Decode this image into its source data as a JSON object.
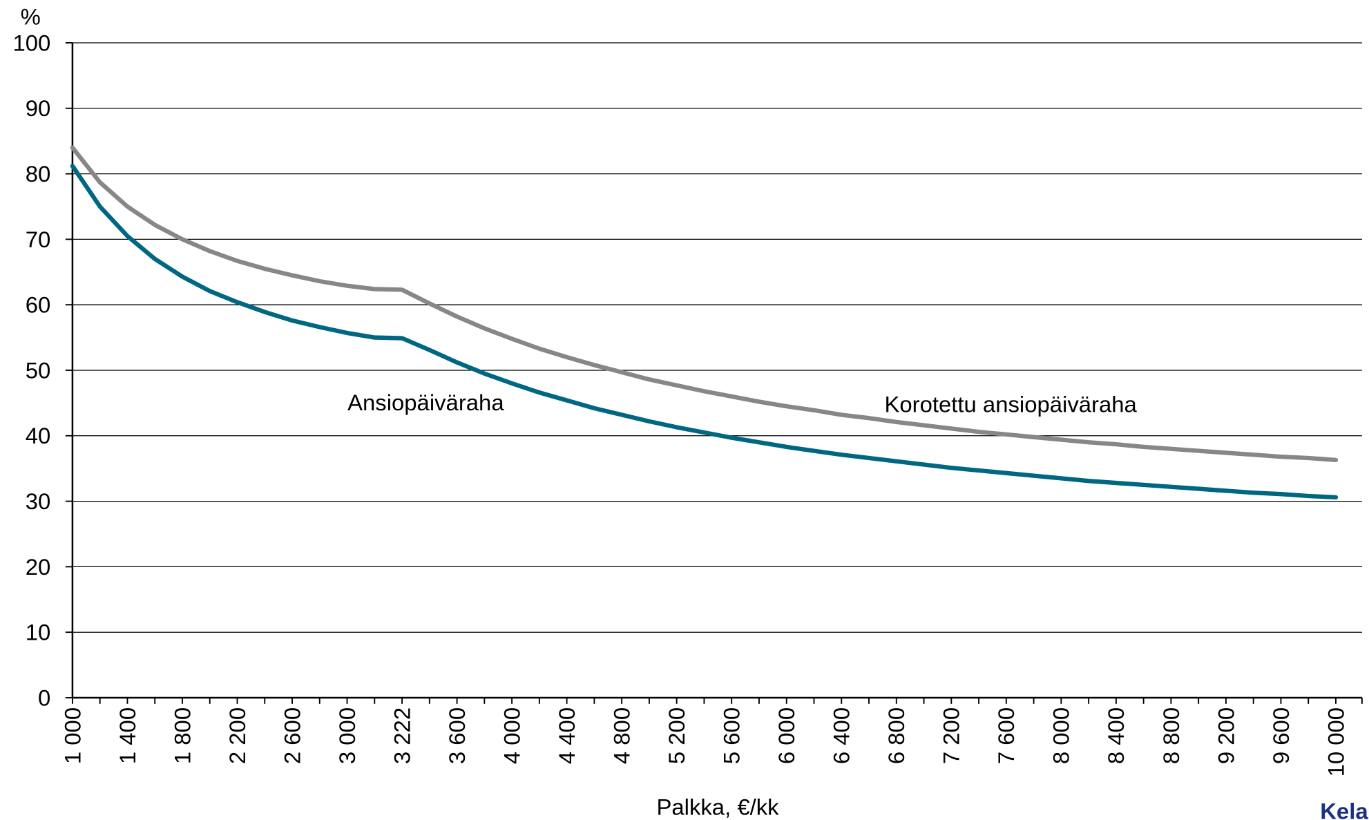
{
  "chart_data": {
    "type": "line",
    "y_unit": "%",
    "x_label": "Palkka, €/kk",
    "logo": "Kela",
    "categories": [
      "1 000",
      null,
      "1 400",
      null,
      "1 800",
      null,
      "2 200",
      null,
      "2 600",
      null,
      "3 000",
      null,
      "3 222",
      null,
      "3 600",
      null,
      "4 000",
      null,
      "4 400",
      null,
      "4 800",
      null,
      "5 200",
      null,
      "5 600",
      null,
      "6 000",
      null,
      "6 400",
      null,
      "6 800",
      null,
      "7 200",
      null,
      "7 600",
      null,
      "8 000",
      null,
      "8 400",
      null,
      "8 800",
      null,
      "9 200",
      null,
      "9 600",
      null,
      "10 000"
    ],
    "series": [
      {
        "name": "Korotettu ansiopäiväraha",
        "color": "#878787",
        "values": [
          84.0,
          78.7,
          75.0,
          72.2,
          70.0,
          68.2,
          66.7,
          65.5,
          64.5,
          63.6,
          62.9,
          62.4,
          62.3,
          60.2,
          58.2,
          56.4,
          54.8,
          53.3,
          52.0,
          50.8,
          49.7,
          48.6,
          47.7,
          46.8,
          46.0,
          45.2,
          44.5,
          43.9,
          43.2,
          42.7,
          42.1,
          41.6,
          41.1,
          40.6,
          40.2,
          39.8,
          39.4,
          39.0,
          38.7,
          38.3,
          38.0,
          37.7,
          37.4,
          37.1,
          36.8,
          36.6,
          36.3
        ]
      },
      {
        "name": "Ansiopäiväraha",
        "color": "#006783",
        "values": [
          81.2,
          75.0,
          70.5,
          67.0,
          64.3,
          62.1,
          60.4,
          58.9,
          57.6,
          56.6,
          55.7,
          55.0,
          54.9,
          53.1,
          51.2,
          49.5,
          48.0,
          46.6,
          45.4,
          44.2,
          43.2,
          42.2,
          41.3,
          40.5,
          39.7,
          39.0,
          38.3,
          37.7,
          37.1,
          36.6,
          36.1,
          35.6,
          35.1,
          34.7,
          34.3,
          33.9,
          33.5,
          33.1,
          32.8,
          32.5,
          32.2,
          31.9,
          31.6,
          31.3,
          31.1,
          30.8,
          30.6
        ]
      }
    ],
    "ylim": [
      0,
      100
    ],
    "yticks": [
      0,
      10,
      20,
      30,
      40,
      50,
      60,
      70,
      80,
      90,
      100
    ],
    "grid": true
  }
}
